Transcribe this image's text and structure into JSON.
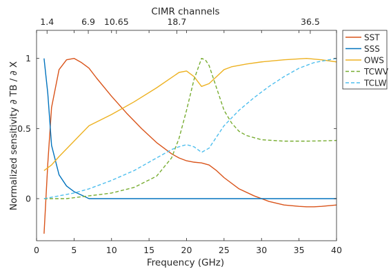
{
  "chart_data": {
    "type": "line",
    "title": "CIMR channels",
    "xlabel": "Frequency (GHz)",
    "ylabel": "Normalized sensitivity ∂ TB / ∂ X",
    "xlim": [
      0,
      40
    ],
    "ylim": [
      -0.3,
      1.2
    ],
    "xticks": [
      0,
      5,
      10,
      15,
      20,
      25,
      30,
      35,
      40
    ],
    "yticks": [
      0,
      0.5,
      1
    ],
    "ytick_labels": [
      "0",
      "0.5",
      "1"
    ],
    "top_axis": {
      "ticks": [
        1.4,
        6.9,
        10.65,
        18.7,
        36.5
      ],
      "labels": [
        "1.4",
        "6.9",
        "10.65",
        "18.7",
        "36.5"
      ]
    },
    "grid": false,
    "legend_position": "outside top-right",
    "series": [
      {
        "name": "SST",
        "color": "#D95319",
        "style": "solid",
        "x": [
          1,
          1.5,
          2,
          3,
          4,
          5,
          6,
          7,
          8,
          10,
          12,
          14,
          16,
          18,
          19,
          20,
          21,
          22,
          23,
          24,
          25,
          27,
          29,
          31,
          33,
          35,
          36,
          37,
          38,
          40
        ],
        "y": [
          -0.25,
          0.25,
          0.65,
          0.92,
          0.99,
          1.0,
          0.97,
          0.93,
          0.86,
          0.73,
          0.61,
          0.5,
          0.4,
          0.32,
          0.29,
          0.27,
          0.26,
          0.255,
          0.24,
          0.2,
          0.15,
          0.07,
          0.02,
          -0.02,
          -0.045,
          -0.055,
          -0.058,
          -0.058,
          -0.055,
          -0.045
        ]
      },
      {
        "name": "SSS",
        "color": "#0072BD",
        "style": "solid",
        "x": [
          1,
          1.5,
          2,
          3,
          4,
          5,
          6,
          7,
          10,
          20,
          30,
          40
        ],
        "y": [
          1.0,
          0.75,
          0.38,
          0.17,
          0.09,
          0.05,
          0.025,
          0.0,
          0.0,
          0.0,
          0.0,
          0.0
        ]
      },
      {
        "name": "OWS",
        "color": "#EDB120",
        "style": "solid",
        "x": [
          1,
          2,
          3,
          5,
          7,
          10,
          13,
          16,
          19,
          20,
          21,
          22,
          23,
          24,
          25,
          26,
          28,
          30,
          33,
          36,
          38,
          40
        ],
        "y": [
          0.2,
          0.24,
          0.3,
          0.41,
          0.52,
          0.6,
          0.69,
          0.79,
          0.9,
          0.91,
          0.87,
          0.8,
          0.82,
          0.87,
          0.92,
          0.94,
          0.96,
          0.975,
          0.99,
          1.0,
          0.99,
          0.975
        ]
      },
      {
        "name": "TCWV",
        "color": "#77AC30",
        "style": "dashed",
        "x": [
          1,
          4,
          7,
          10,
          13,
          16,
          18,
          19,
          20,
          21,
          22,
          22.5,
          23,
          24,
          25,
          26,
          27,
          28,
          30,
          33,
          36,
          38,
          40
        ],
        "y": [
          0.0,
          0.0,
          0.02,
          0.04,
          0.08,
          0.16,
          0.29,
          0.43,
          0.63,
          0.85,
          1.0,
          0.99,
          0.95,
          0.79,
          0.63,
          0.54,
          0.48,
          0.45,
          0.42,
          0.41,
          0.41,
          0.412,
          0.415
        ]
      },
      {
        "name": "TCLW",
        "color": "#4DBEEE",
        "style": "dashed",
        "x": [
          1,
          3,
          5,
          7,
          10,
          13,
          16,
          18,
          19,
          20,
          21,
          22,
          23,
          24,
          25,
          27,
          29,
          31,
          33,
          35,
          37,
          40
        ],
        "y": [
          0.0,
          0.02,
          0.04,
          0.07,
          0.13,
          0.2,
          0.29,
          0.35,
          0.37,
          0.385,
          0.37,
          0.33,
          0.36,
          0.44,
          0.52,
          0.63,
          0.72,
          0.8,
          0.87,
          0.93,
          0.97,
          1.0
        ]
      }
    ]
  }
}
